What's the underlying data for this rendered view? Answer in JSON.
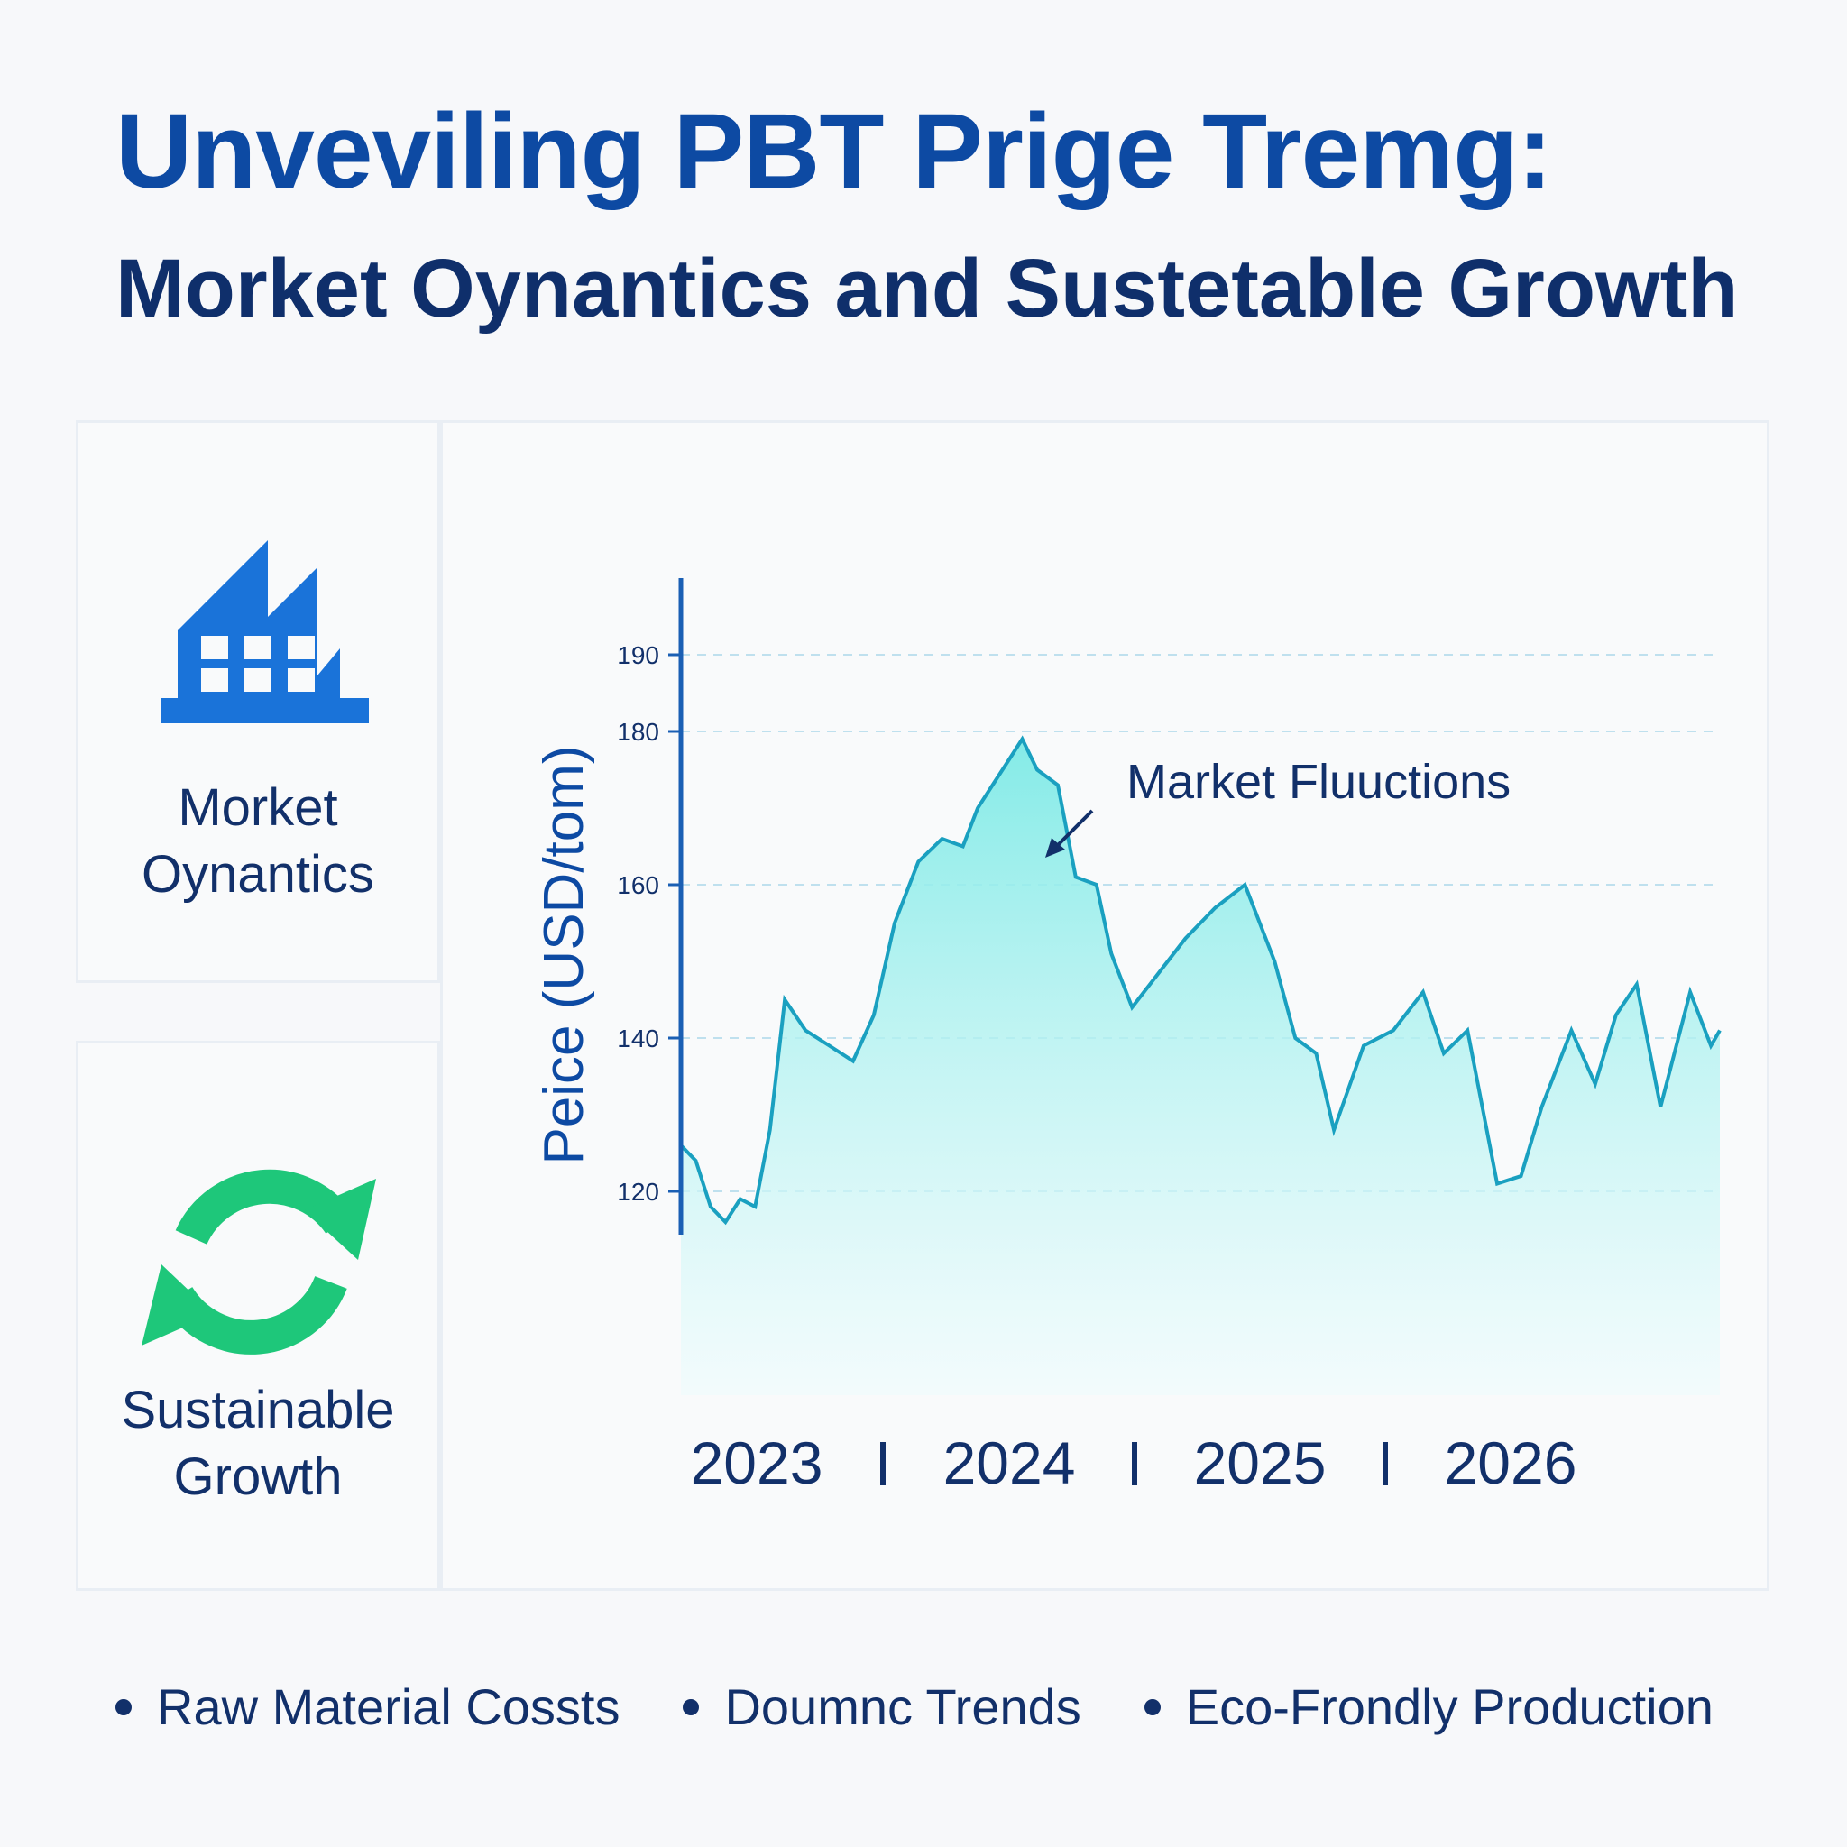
{
  "header": {
    "title": "Unveviling PBT Prige Tremg:",
    "subtitle": "Morket Oynantics and Sustetable Growth"
  },
  "sidebar": {
    "card1_label": [
      "Morket",
      "Oynantics"
    ],
    "card2_label": [
      "Sustainable",
      "Growth"
    ],
    "card1_icon": "factory-icon",
    "card2_icon": "recycle-icon",
    "colors": {
      "factory": "#1a73d9",
      "recycle": "#1ec77a"
    }
  },
  "chart_data": {
    "type": "area",
    "ylabel": "Peice (USD/tom)",
    "yticks": [
      120,
      140,
      160,
      180,
      190
    ],
    "ylim": [
      120,
      190
    ],
    "x_labels": [
      "2023",
      "2024",
      "2025",
      "2026"
    ],
    "annotation": "Market Fluuctions",
    "grid": "dashed horizontal",
    "colors": {
      "line": "#1aa0c0",
      "fill_top": "#7eeae6",
      "fill_bottom": "#eefcfd",
      "axis": "#1a5fb4"
    },
    "x": [
      2023.0,
      2023.05,
      2023.1,
      2023.15,
      2023.2,
      2023.25,
      2023.3,
      2023.35,
      2023.42,
      2023.5,
      2023.58,
      2023.65,
      2023.72,
      2023.8,
      2023.88,
      2023.95,
      2024.0,
      2024.05,
      2024.1,
      2024.15,
      2024.2,
      2024.27,
      2024.33,
      2024.4,
      2024.45,
      2024.52,
      2024.6,
      2024.7,
      2024.8,
      2024.9,
      2025.0,
      2025.07,
      2025.14,
      2025.2,
      2025.3,
      2025.4,
      2025.5,
      2025.57,
      2025.65,
      2025.75,
      2025.83,
      2025.9,
      2026.0,
      2026.08,
      2026.15,
      2026.22,
      2026.3,
      2026.4,
      2026.47,
      2026.5
    ],
    "y": [
      126,
      124,
      118,
      116,
      119,
      118,
      128,
      145,
      141,
      139,
      137,
      143,
      155,
      163,
      166,
      165,
      170,
      173,
      176,
      179,
      175,
      173,
      161,
      160,
      151,
      144,
      148,
      153,
      157,
      160,
      150,
      140,
      138,
      128,
      139,
      141,
      146,
      138,
      141,
      121,
      122,
      131,
      141,
      134,
      143,
      147,
      131,
      146,
      139,
      141
    ]
  }
}
